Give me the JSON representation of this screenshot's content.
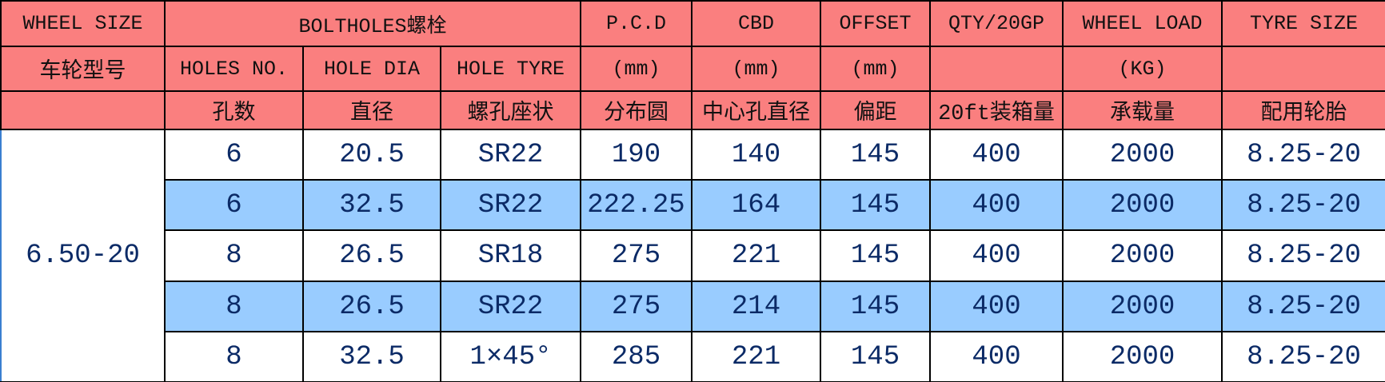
{
  "header": {
    "row1": [
      "WHEEL SIZE",
      "BOLTHOLES螺栓",
      "P.C.D",
      "CBD",
      "OFFSET",
      "QTY/20GP",
      "WHEEL LOAD",
      "TYRE SIZE"
    ],
    "row2": [
      "车轮型号",
      "HOLES NO.",
      "HOLE DIA",
      "HOLE TYRE",
      "(mm)",
      "(mm)",
      "(mm)",
      "(KG)"
    ],
    "row3": [
      "孔数",
      "直径",
      "螺孔座状",
      "分布圆",
      "中心孔直径",
      "偏距",
      "20ft装箱量",
      "承载量",
      "配用轮胎"
    ]
  },
  "table": {
    "wheel_size": "6.50-20",
    "rows": [
      [
        "6",
        "20.5",
        "SR22",
        "190",
        "140",
        "145",
        "400",
        "2000",
        "8.25-20"
      ],
      [
        "6",
        "32.5",
        "SR22",
        "222.25",
        "164",
        "145",
        "400",
        "2000",
        "8.25-20"
      ],
      [
        "8",
        "26.5",
        "SR18",
        "275",
        "221",
        "145",
        "400",
        "2000",
        "8.25-20"
      ],
      [
        "8",
        "26.5",
        "SR22",
        "275",
        "214",
        "145",
        "400",
        "2000",
        "8.25-20"
      ],
      [
        "8",
        "32.5",
        "1×45°",
        "285",
        "221",
        "145",
        "400",
        "2000",
        "8.25-20"
      ]
    ]
  }
}
